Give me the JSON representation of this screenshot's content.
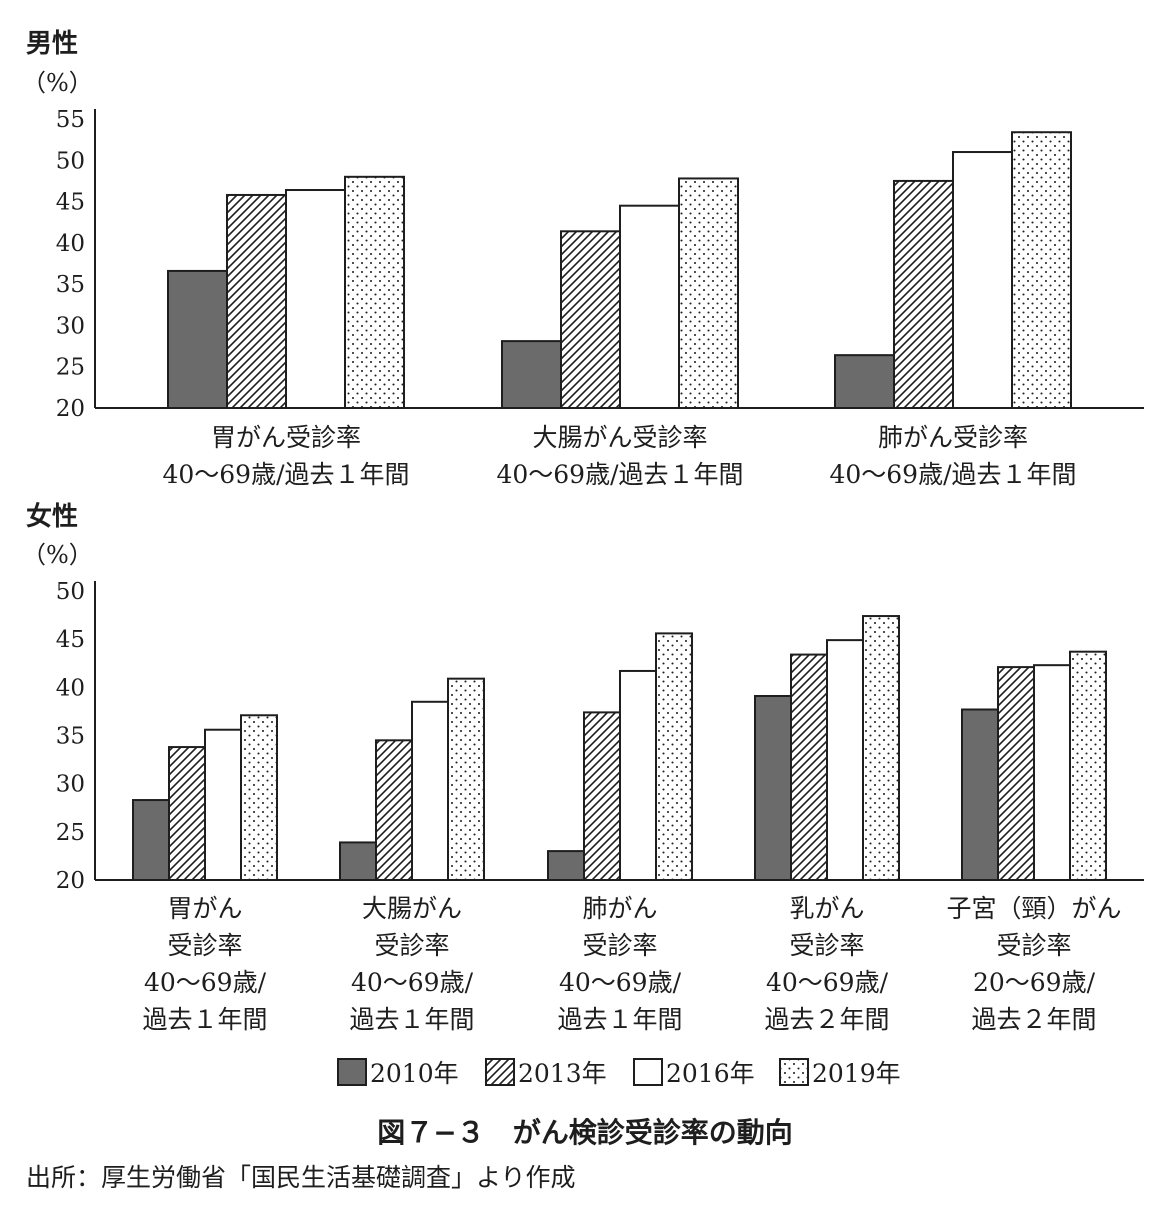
{
  "figure": {
    "title": "図７−３　がん検診受診率の動向",
    "source": "出所：厚生労働省「国民生活基礎調査」より作成"
  },
  "legend": [
    "2010年",
    "2013年",
    "2016年",
    "2019年"
  ],
  "colors": {
    "2010": "#6b6b6b",
    "bar_stroke": "#1e1e1e",
    "axis": "#1e1e1e"
  },
  "chart_data": [
    {
      "type": "bar",
      "title": "男性",
      "ylabel": "（%）",
      "ylim": [
        20,
        55
      ],
      "yticks": [
        20,
        25,
        30,
        35,
        40,
        45,
        50,
        55
      ],
      "categories": [
        [
          "胃がん受診率",
          "40〜69歳/過去１年間"
        ],
        [
          "大腸がん受診率",
          "40〜69歳/過去１年間"
        ],
        [
          "肺がん受診率",
          "40〜69歳/過去１年間"
        ]
      ],
      "series": [
        {
          "name": "2010年",
          "values": [
            36.6,
            28.1,
            26.4
          ]
        },
        {
          "name": "2013年",
          "values": [
            45.8,
            41.4,
            47.5
          ]
        },
        {
          "name": "2016年",
          "values": [
            46.4,
            44.5,
            51.0
          ]
        },
        {
          "name": "2019年",
          "values": [
            48.0,
            47.8,
            53.4
          ]
        }
      ],
      "grid": false
    },
    {
      "type": "bar",
      "title": "女性",
      "ylabel": "（%）",
      "ylim": [
        20,
        50
      ],
      "yticks": [
        20,
        25,
        30,
        35,
        40,
        45,
        50
      ],
      "categories": [
        [
          "胃がん",
          "受診率",
          "40〜69歳/",
          "過去１年間"
        ],
        [
          "大腸がん",
          "受診率",
          "40〜69歳/",
          "過去１年間"
        ],
        [
          "肺がん",
          "受診率",
          "40〜69歳/",
          "過去１年間"
        ],
        [
          "乳がん",
          "受診率",
          "40〜69歳/",
          "過去２年間"
        ],
        [
          "子宮（頸）がん",
          "受診率",
          "20〜69歳/",
          "過去２年間"
        ]
      ],
      "series": [
        {
          "name": "2010年",
          "values": [
            28.3,
            23.9,
            23.0,
            39.1,
            37.7
          ]
        },
        {
          "name": "2013年",
          "values": [
            33.8,
            34.5,
            37.4,
            43.4,
            42.1
          ]
        },
        {
          "name": "2016年",
          "values": [
            35.6,
            38.5,
            41.7,
            44.9,
            42.3
          ]
        },
        {
          "name": "2019年",
          "values": [
            37.1,
            40.9,
            45.6,
            47.4,
            43.7
          ]
        }
      ],
      "grid": false
    }
  ]
}
